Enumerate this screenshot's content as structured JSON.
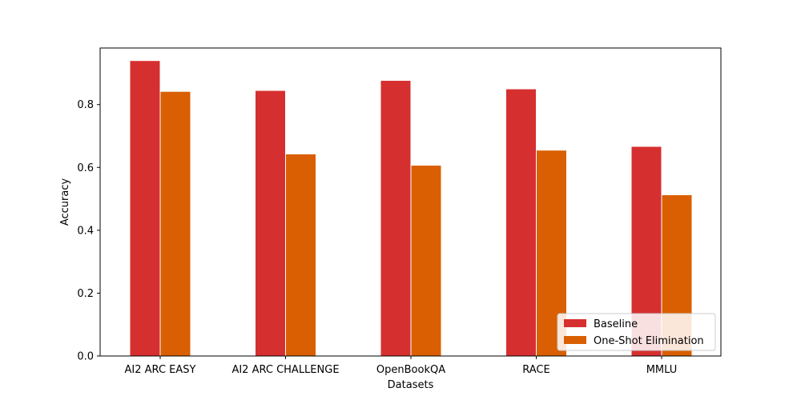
{
  "chart_data": {
    "type": "bar",
    "title": "",
    "xlabel": "Datasets",
    "ylabel": "Accuracy",
    "ylim": [
      0,
      0.98
    ],
    "yticks": [
      0.0,
      0.2,
      0.4,
      0.6,
      0.8
    ],
    "ytick_labels": [
      "0.0",
      "0.2",
      "0.4",
      "0.6",
      "0.8"
    ],
    "categories": [
      "AI2 ARC EASY",
      "AI2 ARC CHALLENGE",
      "OpenBookQA",
      "RACE",
      "MMLU"
    ],
    "series": [
      {
        "name": "Baseline",
        "color": "#d62f2f",
        "values": [
          0.94,
          0.845,
          0.877,
          0.85,
          0.667
        ]
      },
      {
        "name": "One-Shot Elimination",
        "color": "#d95f02",
        "values": [
          0.842,
          0.643,
          0.607,
          0.655,
          0.513
        ]
      }
    ],
    "legend_position": "lower-right",
    "grid": false
  }
}
